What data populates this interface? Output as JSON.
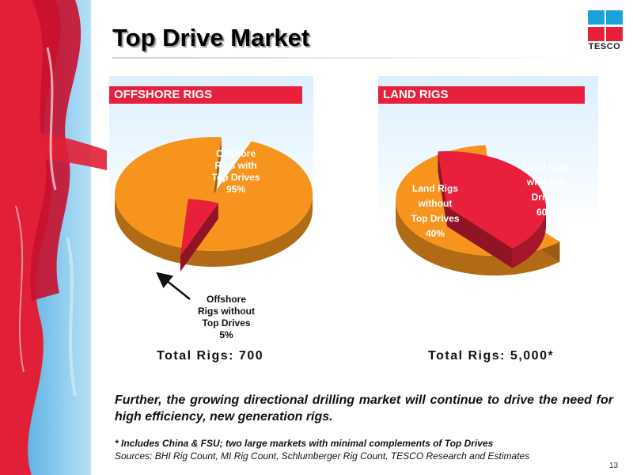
{
  "slide": {
    "title": "Top Drive Market",
    "statement": "Further, the growing directional drilling market will continue to drive the need for high efficiency, new generation rigs.",
    "footnote": "* Includes China & FSU; two large markets with minimal complements of Top Drives",
    "sources": "Sources: BHI Rig Count, MI Rig Count, Schlumberger Rig Count, TESCO Research and Estimates",
    "page_number": "13"
  },
  "logo": {
    "text": "TESCO",
    "colors": {
      "blue": "#1aa3d9",
      "red": "#e8203c"
    }
  },
  "colors": {
    "accent_red": "#e8203c",
    "pie_orange": "#f7941d",
    "pie_red": "#e8203c"
  },
  "chart_data": [
    {
      "type": "pie",
      "header": "OFFSHORE RIGS",
      "total_label": "Total Rigs: 700",
      "slices": [
        {
          "label": [
            "Offshore",
            "Rigs with",
            "Top Drives",
            "95%"
          ],
          "value": 95,
          "color": "#f7941d"
        },
        {
          "label": [
            "Offshore",
            "Rigs without",
            "Top Drives",
            "5%"
          ],
          "value": 5,
          "color": "#e8203c"
        }
      ],
      "annotation": "arrow pointing from the 5% label to the exploded slice"
    },
    {
      "type": "pie",
      "header": "LAND RIGS",
      "total_label": "Total Rigs: 5,000*",
      "slices": [
        {
          "label": [
            "Land Rigs",
            "with Top",
            "Drives",
            "60%"
          ],
          "value": 60,
          "color": "#f7941d"
        },
        {
          "label": [
            "Land Rigs",
            "without",
            "Top Drives",
            "40%"
          ],
          "value": 40,
          "color": "#e8203c"
        }
      ]
    }
  ]
}
